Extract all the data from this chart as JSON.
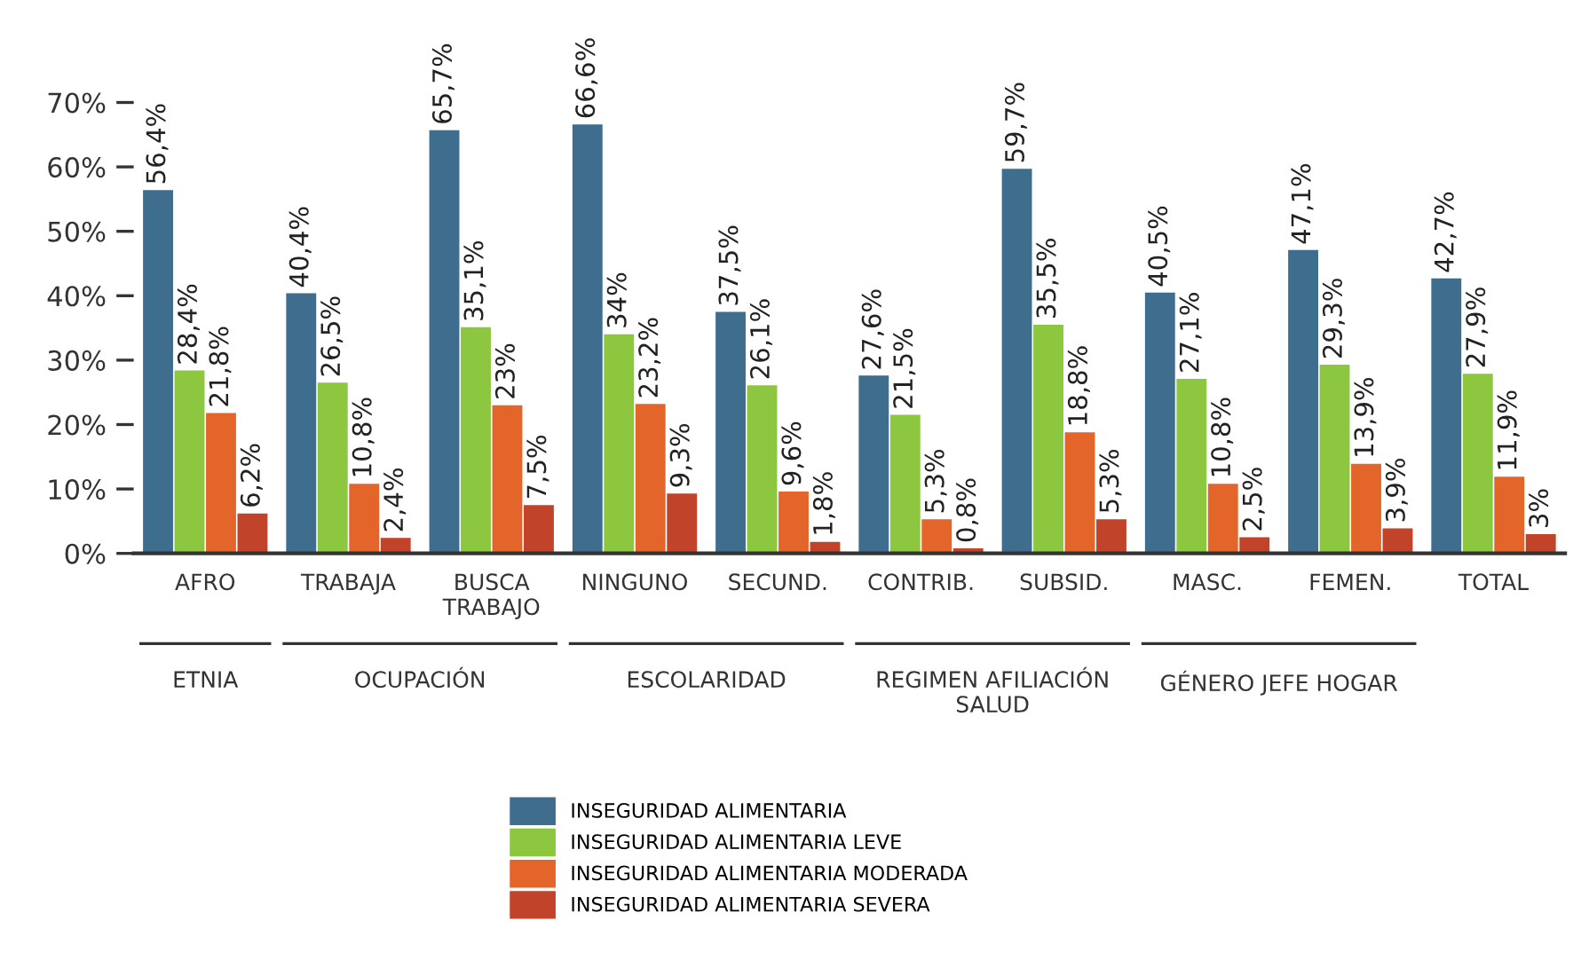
{
  "chart_data": {
    "type": "bar",
    "categories": [
      "AFRO",
      "TRABAJA",
      "BUSCA\nTRABAJO",
      "NINGUNO",
      "SECUND.",
      "CONTRIB.",
      "SUBSID.",
      "MASC.",
      "FEMEN.",
      "TOTAL"
    ],
    "series": [
      {
        "name": "INSEGURIDAD ALIMENTARIA",
        "color": "#3e6d8e",
        "values": [
          56.4,
          40.4,
          65.7,
          66.6,
          37.5,
          27.6,
          59.7,
          40.5,
          47.1,
          42.7
        ],
        "value_labels": [
          "56,4%",
          "40,4%",
          "65,7%",
          "66,6%",
          "37,5%",
          "27,6%",
          "59,7%",
          "40,5%",
          "47,1%",
          "42,7%"
        ]
      },
      {
        "name": "INSEGURIDAD ALIMENTARIA LEVE",
        "color": "#8dc63f",
        "values": [
          28.4,
          26.5,
          35.1,
          34,
          26.1,
          21.5,
          35.5,
          27.1,
          29.3,
          27.9
        ],
        "value_labels": [
          "28,4%",
          "26,5%",
          "35,1%",
          "34%",
          "26,1%",
          "21,5%",
          "35,5%",
          "27,1%",
          "29,3%",
          "27,9%"
        ]
      },
      {
        "name": "INSEGURIDAD ALIMENTARIA MODERADA",
        "color": "#e4652a",
        "values": [
          21.8,
          10.8,
          23,
          23.2,
          9.6,
          5.3,
          18.8,
          10.8,
          13.9,
          11.9
        ],
        "value_labels": [
          "21,8%",
          "10,8%",
          "23%",
          "23,2%",
          "9,6%",
          "5,3%",
          "18,8%",
          "10,8%",
          "13,9%",
          "11,9%"
        ]
      },
      {
        "name": "INSEGURIDAD ALIMENTARIA SEVERA",
        "color": "#c0432a",
        "values": [
          6.2,
          2.4,
          7.5,
          9.3,
          1.8,
          0.8,
          5.3,
          2.5,
          3.9,
          3
        ],
        "value_labels": [
          "6,2%",
          "2,4%",
          "7,5%",
          "9,3%",
          "1,8%",
          "0,8%",
          "5,3%",
          "2,5%",
          "3,9%",
          "3%"
        ]
      }
    ],
    "ylim": [
      0,
      70
    ],
    "yticks": [
      {
        "value": 0,
        "label": "0%"
      },
      {
        "value": 10,
        "label": "10%"
      },
      {
        "value": 20,
        "label": "20%"
      },
      {
        "value": 30,
        "label": "30%"
      },
      {
        "value": 40,
        "label": "40%"
      },
      {
        "value": 50,
        "label": "50%"
      },
      {
        "value": 60,
        "label": "60%"
      },
      {
        "value": 70,
        "label": "70%"
      }
    ],
    "annotations": [
      "ETNIA",
      "OCUPACIÓN",
      "ESCOLARIDAD",
      "REGIMEN AFILIACIÓN\nSALUD",
      "GÉNERO JEFE HOGAR"
    ],
    "grid": false,
    "legend": "bottom"
  }
}
